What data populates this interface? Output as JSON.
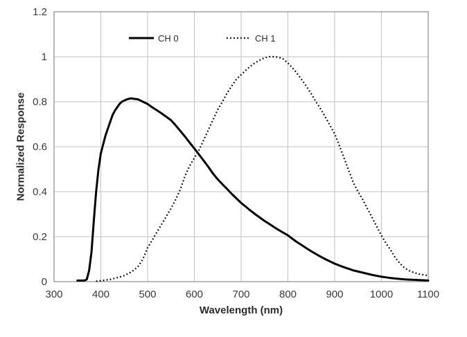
{
  "chart_data": {
    "type": "line",
    "title": "",
    "xlabel": "Wavelength (nm)",
    "ylabel": "Normalized Response",
    "xlim": [
      300,
      1100
    ],
    "ylim": [
      0,
      1.2
    ],
    "x_ticks": [
      300,
      400,
      500,
      600,
      700,
      800,
      900,
      1000,
      1100
    ],
    "x_tick_labels": [
      "300",
      "400",
      "500",
      "600",
      "700",
      "800",
      "900",
      "1000",
      "1100"
    ],
    "y_ticks": [
      0,
      0.2,
      0.4,
      0.6,
      0.8,
      1,
      1.2
    ],
    "y_tick_labels": [
      "0",
      "0.2",
      "0.4",
      "0.6",
      "0.8",
      "1",
      "1.2"
    ],
    "grid": true,
    "legend_position": "top-center-inside",
    "colors": {
      "series": "#000000",
      "gridline": "#c2c2c2",
      "plot_border": "#8a8a8a",
      "tick_text": "#3a3a3a",
      "axis_title_text": "#2b2b2b",
      "background": "#ffffff"
    },
    "series": [
      {
        "name": "CH 0",
        "line_style": "solid",
        "color": "#000000",
        "x": [
          350,
          355,
          360,
          365,
          370,
          375,
          380,
          385,
          390,
          395,
          400,
          405,
          410,
          415,
          420,
          425,
          430,
          435,
          440,
          445,
          450,
          455,
          460,
          465,
          470,
          475,
          480,
          485,
          490,
          495,
          500,
          510,
          520,
          530,
          540,
          550,
          560,
          570,
          580,
          590,
          600,
          610,
          620,
          630,
          640,
          650,
          660,
          670,
          680,
          690,
          700,
          710,
          720,
          730,
          740,
          750,
          760,
          770,
          780,
          790,
          800,
          810,
          820,
          830,
          840,
          850,
          860,
          870,
          880,
          890,
          900,
          910,
          920,
          930,
          940,
          950,
          960,
          970,
          980,
          990,
          1000,
          1010,
          1020,
          1030,
          1040,
          1050,
          1060,
          1070,
          1080,
          1090,
          1100
        ],
        "y": [
          0.005,
          0.005,
          0.005,
          0.005,
          0.01,
          0.05,
          0.13,
          0.27,
          0.4,
          0.5,
          0.57,
          0.61,
          0.65,
          0.68,
          0.71,
          0.74,
          0.76,
          0.775,
          0.79,
          0.8,
          0.805,
          0.81,
          0.813,
          0.815,
          0.813,
          0.812,
          0.81,
          0.805,
          0.8,
          0.795,
          0.79,
          0.775,
          0.762,
          0.748,
          0.733,
          0.718,
          0.695,
          0.67,
          0.645,
          0.618,
          0.592,
          0.565,
          0.538,
          0.51,
          0.48,
          0.455,
          0.433,
          0.412,
          0.39,
          0.37,
          0.35,
          0.333,
          0.316,
          0.3,
          0.285,
          0.27,
          0.257,
          0.243,
          0.23,
          0.218,
          0.206,
          0.19,
          0.175,
          0.162,
          0.148,
          0.135,
          0.123,
          0.111,
          0.1,
          0.09,
          0.08,
          0.072,
          0.064,
          0.057,
          0.05,
          0.045,
          0.04,
          0.035,
          0.03,
          0.026,
          0.022,
          0.019,
          0.016,
          0.014,
          0.012,
          0.01,
          0.009,
          0.008,
          0.007,
          0.006,
          0.005
        ]
      },
      {
        "name": "CH 1",
        "line_style": "dotted",
        "color": "#000000",
        "x": [
          390,
          400,
          410,
          420,
          430,
          440,
          450,
          460,
          470,
          480,
          490,
          500,
          510,
          520,
          530,
          540,
          550,
          560,
          570,
          580,
          590,
          600,
          610,
          620,
          630,
          640,
          650,
          660,
          670,
          680,
          690,
          700,
          710,
          720,
          730,
          740,
          750,
          760,
          770,
          780,
          790,
          800,
          810,
          820,
          830,
          840,
          850,
          860,
          870,
          880,
          890,
          900,
          910,
          920,
          930,
          940,
          950,
          960,
          970,
          980,
          990,
          1000,
          1010,
          1020,
          1030,
          1040,
          1050,
          1060,
          1070,
          1080,
          1090,
          1100
        ],
        "y": [
          0.002,
          0.004,
          0.007,
          0.01,
          0.015,
          0.02,
          0.027,
          0.037,
          0.05,
          0.068,
          0.1,
          0.15,
          0.185,
          0.22,
          0.255,
          0.29,
          0.325,
          0.365,
          0.41,
          0.47,
          0.515,
          0.55,
          0.585,
          0.63,
          0.675,
          0.72,
          0.765,
          0.8,
          0.838,
          0.87,
          0.9,
          0.92,
          0.94,
          0.958,
          0.973,
          0.985,
          0.995,
          1.0,
          1.0,
          0.998,
          0.99,
          0.972,
          0.95,
          0.925,
          0.897,
          0.867,
          0.835,
          0.8,
          0.768,
          0.732,
          0.695,
          0.658,
          0.605,
          0.55,
          0.495,
          0.44,
          0.4,
          0.365,
          0.325,
          0.285,
          0.245,
          0.205,
          0.17,
          0.14,
          0.105,
          0.08,
          0.06,
          0.048,
          0.04,
          0.034,
          0.03,
          0.027
        ]
      }
    ]
  }
}
